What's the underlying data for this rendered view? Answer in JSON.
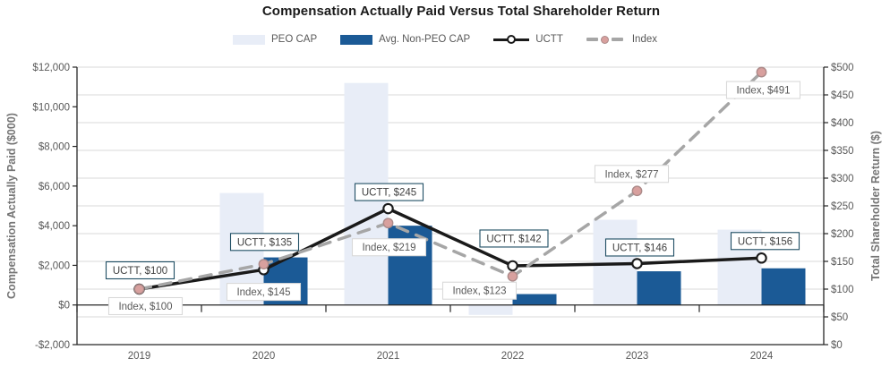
{
  "title": "Compensation Actually Paid Versus Total Shareholder Return",
  "legend": {
    "items": [
      {
        "label": "PEO CAP"
      },
      {
        "label": "Avg. Non-PEO CAP"
      },
      {
        "label": "UCTT"
      },
      {
        "label": "Index"
      }
    ]
  },
  "chart_data": {
    "type": "bar",
    "subtype": "combo-bar-line-dual-axis",
    "title": "Compensation Actually Paid Versus Total Shareholder Return",
    "categories": [
      "2019",
      "2020",
      "2021",
      "2022",
      "2023",
      "2024"
    ],
    "bar_series": [
      {
        "name": "PEO CAP",
        "axis": "left",
        "color": "#e8edf7",
        "values": [
          0,
          5650,
          11200,
          -500,
          4300,
          3800
        ]
      },
      {
        "name": "Avg. Non-PEO CAP",
        "axis": "left",
        "color": "#1b5a96",
        "values": [
          0,
          2400,
          4000,
          550,
          1700,
          1850
        ]
      }
    ],
    "line_series": [
      {
        "name": "UCTT",
        "axis": "right",
        "color": "#1a1a1a",
        "dash": false,
        "marker": {
          "fill": "#ffffff",
          "stroke": "#1a1a1a"
        },
        "values": [
          100,
          135,
          245,
          142,
          146,
          156
        ],
        "point_labels": [
          "UCTT, $100",
          "UCTT, $135",
          "UCTT, $245",
          "UCTT, $142",
          "UCTT, $146",
          "UCTT, $156"
        ],
        "label_style": {
          "border": "#1f4e63",
          "text": "#3f3f3f"
        }
      },
      {
        "name": "Index",
        "axis": "right",
        "color": "#a6a6a6",
        "dash": true,
        "marker": {
          "fill": "#d8a09e",
          "stroke": "#ab8a89"
        },
        "values": [
          100,
          145,
          219,
          123,
          277,
          491
        ],
        "point_labels": [
          "Index, $100",
          "Index, $145",
          "Index, $219",
          "Index, $123",
          "Index, $277",
          "Index, $491"
        ],
        "label_style": {
          "border": "#d9d9d9",
          "text": "#595959"
        }
      }
    ],
    "left_axis": {
      "title": "Compensation Actually Paid ($000)",
      "min": -2000,
      "max": 12000,
      "step": 2000,
      "tick_labels": [
        "$12,000",
        "$10,000",
        "$8,000",
        "$6,000",
        "$4,000",
        "$2,000",
        "$0",
        "-$2,000"
      ]
    },
    "right_axis": {
      "title": "Total Shareholder Return ($)",
      "min": 0,
      "max": 500,
      "step": 50,
      "tick_labels": [
        "$500",
        "$450",
        "$400",
        "$350",
        "$300",
        "$250",
        "$200",
        "$150",
        "$100",
        "$50",
        "$0"
      ]
    },
    "grid": "horizontal-on",
    "legend_position": "top"
  },
  "colors": {
    "gridline": "#d9d9d9",
    "axis_line": "#262626",
    "tick_text": "#595959",
    "axis_title_text": "#757575",
    "title_text": "#1a1a1a"
  }
}
